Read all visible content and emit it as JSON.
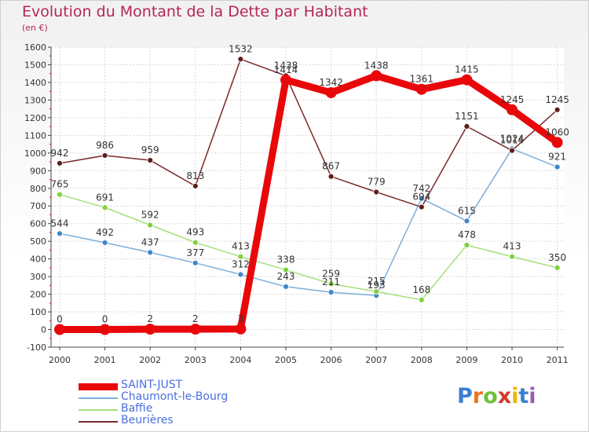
{
  "header": {
    "title": "Evolution du Montant de la Dette par Habitant",
    "unit": "(en €)"
  },
  "brand": {
    "text": "Proxiti",
    "letters": [
      "P",
      "r",
      "o",
      "x",
      "i",
      "t",
      "i"
    ],
    "colors": [
      "#3c7fd0",
      "#e8731f",
      "#6fbf3a",
      "#d23b2a",
      "#f0b400",
      "#3c7fd0",
      "#9b59b6"
    ]
  },
  "chart_data": {
    "type": "line",
    "title": "Evolution du Montant de la Dette par Habitant",
    "ylabel": "(en €)",
    "xlabel": "",
    "categories": [
      "2000",
      "2001",
      "2002",
      "2003",
      "2004",
      "2005",
      "2006",
      "2007",
      "2008",
      "2009",
      "2010",
      "2011"
    ],
    "ylim": [
      -100,
      1600
    ],
    "yticks": [
      "-100",
      "0",
      "100",
      "200",
      "300",
      "400",
      "500",
      "600",
      "700",
      "800",
      "900",
      "1000",
      "1100",
      "1200",
      "1300",
      "1400",
      "1500",
      "1600"
    ],
    "grid": true,
    "legend_position": "bottom-left",
    "series": [
      {
        "name": "SAINT-JUST",
        "color": "#e8080a",
        "marker_color": "#e8080a",
        "values": [
          0,
          0,
          2,
          2,
          3,
          1414,
          1342,
          1438,
          1361,
          1415,
          1245,
          1060
        ],
        "labels": [
          "0",
          "0",
          "2",
          "2",
          "3",
          "1414",
          "1342",
          "1438",
          "1361",
          "1415",
          "1245",
          "1060"
        ]
      },
      {
        "name": "Chaumont-le-Bourg",
        "color": "#7aaedc",
        "marker_color": "#3f87c9",
        "values": [
          544,
          492,
          437,
          377,
          312,
          243,
          211,
          193,
          742,
          615,
          1024,
          921
        ],
        "labels": [
          "544",
          "492",
          "437",
          "377",
          "312",
          "243",
          "211",
          "193",
          "742",
          "615",
          "1024",
          "921"
        ]
      },
      {
        "name": "Baffie",
        "color": "#a6e07a",
        "marker_color": "#7fd13f",
        "values": [
          765,
          691,
          592,
          493,
          413,
          338,
          259,
          215,
          168,
          478,
          413,
          350
        ],
        "labels": [
          "765",
          "691",
          "592",
          "493",
          "413",
          "338",
          "259",
          "215",
          "168",
          "478",
          "413",
          "350"
        ]
      },
      {
        "name": "Beurières",
        "color": "#7a2a2a",
        "marker_color": "#5e1d1d",
        "values": [
          942,
          986,
          959,
          813,
          1532,
          1438,
          867,
          779,
          694,
          1151,
          1014,
          1245
        ],
        "labels": [
          "942",
          "986",
          "959",
          "813",
          "1532",
          "1438",
          "867",
          "779",
          "694",
          "1151",
          "1014",
          "1245"
        ]
      }
    ]
  }
}
